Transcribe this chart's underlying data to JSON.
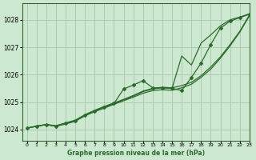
{
  "title": "Graphe pression niveau de la mer (hPa)",
  "background_color": "#cde8d0",
  "plot_bg_color": "#cde8d0",
  "grid_color": "#a8c8a8",
  "line_color": "#2d6a2d",
  "xlim": [
    -0.5,
    23
  ],
  "ylim": [
    1023.6,
    1028.6
  ],
  "yticks": [
    1024,
    1025,
    1026,
    1027,
    1028
  ],
  "xticks": [
    0,
    1,
    2,
    3,
    4,
    5,
    6,
    7,
    8,
    9,
    10,
    11,
    12,
    13,
    14,
    15,
    16,
    17,
    18,
    19,
    20,
    21,
    22,
    23
  ],
  "line_main_x": [
    0,
    1,
    2,
    3,
    4,
    5,
    6,
    7,
    8,
    9,
    10,
    11,
    12,
    13,
    14,
    15,
    16,
    17,
    18,
    19,
    20,
    21,
    22,
    23
  ],
  "line_main_y": [
    1024.05,
    1024.12,
    1024.18,
    1024.12,
    1024.22,
    1024.32,
    1024.52,
    1024.68,
    1024.82,
    1024.95,
    1025.08,
    1025.22,
    1025.38,
    1025.48,
    1025.52,
    1025.5,
    1026.68,
    1026.35,
    1027.15,
    1027.45,
    1027.78,
    1028.0,
    1028.1,
    1028.22
  ],
  "line_smooth1_x": [
    0,
    1,
    2,
    3,
    4,
    5,
    6,
    7,
    8,
    9,
    10,
    11,
    12,
    13,
    14,
    15,
    16,
    17,
    18,
    19,
    20,
    21,
    22,
    23
  ],
  "line_smooth1_y": [
    1024.05,
    1024.12,
    1024.18,
    1024.12,
    1024.2,
    1024.3,
    1024.5,
    1024.65,
    1024.78,
    1024.92,
    1025.05,
    1025.18,
    1025.32,
    1025.42,
    1025.45,
    1025.43,
    1025.52,
    1025.65,
    1025.9,
    1026.2,
    1026.6,
    1027.05,
    1027.55,
    1028.15
  ],
  "line_smooth2_x": [
    0,
    1,
    2,
    3,
    4,
    5,
    6,
    7,
    8,
    9,
    10,
    11,
    12,
    13,
    14,
    15,
    16,
    17,
    18,
    19,
    20,
    21,
    22,
    23
  ],
  "line_smooth2_y": [
    1024.05,
    1024.12,
    1024.18,
    1024.14,
    1024.24,
    1024.34,
    1024.54,
    1024.7,
    1024.84,
    1024.97,
    1025.1,
    1025.24,
    1025.4,
    1025.5,
    1025.54,
    1025.52,
    1025.6,
    1025.72,
    1025.96,
    1026.28,
    1026.65,
    1027.1,
    1027.58,
    1028.18
  ],
  "line_diverge_x": [
    0,
    1,
    2,
    3,
    4,
    5,
    6,
    7,
    8,
    9,
    10,
    11,
    12,
    13,
    14,
    15,
    16,
    17,
    18,
    19,
    20,
    21,
    22,
    23
  ],
  "line_diverge_y": [
    1024.05,
    1024.12,
    1024.18,
    1024.12,
    1024.22,
    1024.32,
    1024.52,
    1024.68,
    1024.82,
    1024.95,
    1025.48,
    1025.62,
    1025.78,
    1025.52,
    1025.52,
    1025.5,
    1025.42,
    1025.9,
    1026.42,
    1027.1,
    1027.7,
    1027.95,
    1028.08,
    1028.2
  ],
  "markers_x": [
    0,
    1,
    2,
    3,
    4,
    5,
    6,
    7,
    8,
    9,
    10,
    11,
    12,
    13,
    14,
    15,
    16,
    17,
    18,
    19,
    20,
    21,
    22,
    23
  ],
  "markers_y": [
    1024.05,
    1024.12,
    1024.18,
    1024.12,
    1024.22,
    1024.32,
    1024.52,
    1024.68,
    1024.82,
    1024.95,
    1025.48,
    1025.62,
    1025.78,
    1025.52,
    1025.52,
    1025.5,
    1025.42,
    1025.9,
    1026.42,
    1027.1,
    1027.7,
    1027.95,
    1028.08,
    1028.2
  ]
}
